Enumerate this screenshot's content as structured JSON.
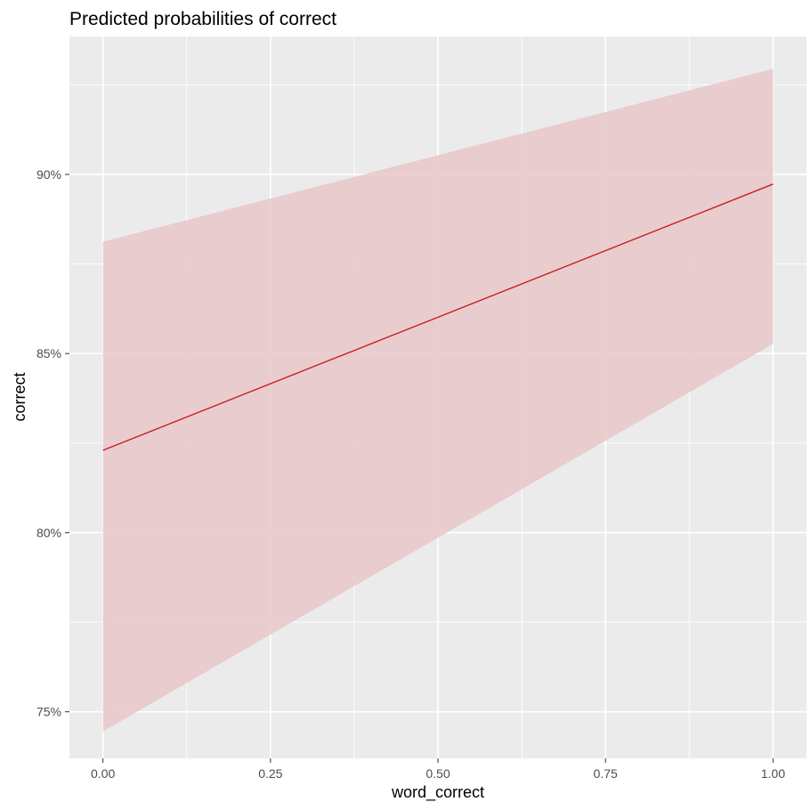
{
  "chart_data": {
    "type": "line",
    "title": "Predicted probabilities of correct",
    "xlabel": "word_correct",
    "ylabel": "correct",
    "xlim": [
      -0.05,
      1.05
    ],
    "ylim": [
      0.737,
      0.9385
    ],
    "x_ticks": [
      {
        "value": 0.0,
        "label": "0.00"
      },
      {
        "value": 0.25,
        "label": "0.25"
      },
      {
        "value": 0.5,
        "label": "0.50"
      },
      {
        "value": 0.75,
        "label": "0.75"
      },
      {
        "value": 1.0,
        "label": "1.00"
      }
    ],
    "x_minor_ticks": [
      0.125,
      0.375,
      0.625,
      0.875
    ],
    "y_ticks": [
      {
        "value": 0.75,
        "label": "75%"
      },
      {
        "value": 0.8,
        "label": "80%"
      },
      {
        "value": 0.85,
        "label": "85%"
      },
      {
        "value": 0.9,
        "label": "90%"
      }
    ],
    "y_minor_ticks": [
      0.775,
      0.825,
      0.875,
      0.925
    ],
    "grid": true,
    "series": [
      {
        "x": [
          0.0,
          1.0
        ],
        "values": [
          0.823,
          0.8973
        ],
        "ci_low": [
          0.7445,
          0.8527
        ],
        "ci_high": [
          0.8812,
          0.9295
        ],
        "line_color": "#cc1f1f",
        "band_color": "#e9c7c9"
      }
    ],
    "colors": {
      "panel_background": "#ebebeb",
      "grid": "#ffffff",
      "tick_text": "#4d4d4d",
      "title_text": "#000000"
    }
  }
}
